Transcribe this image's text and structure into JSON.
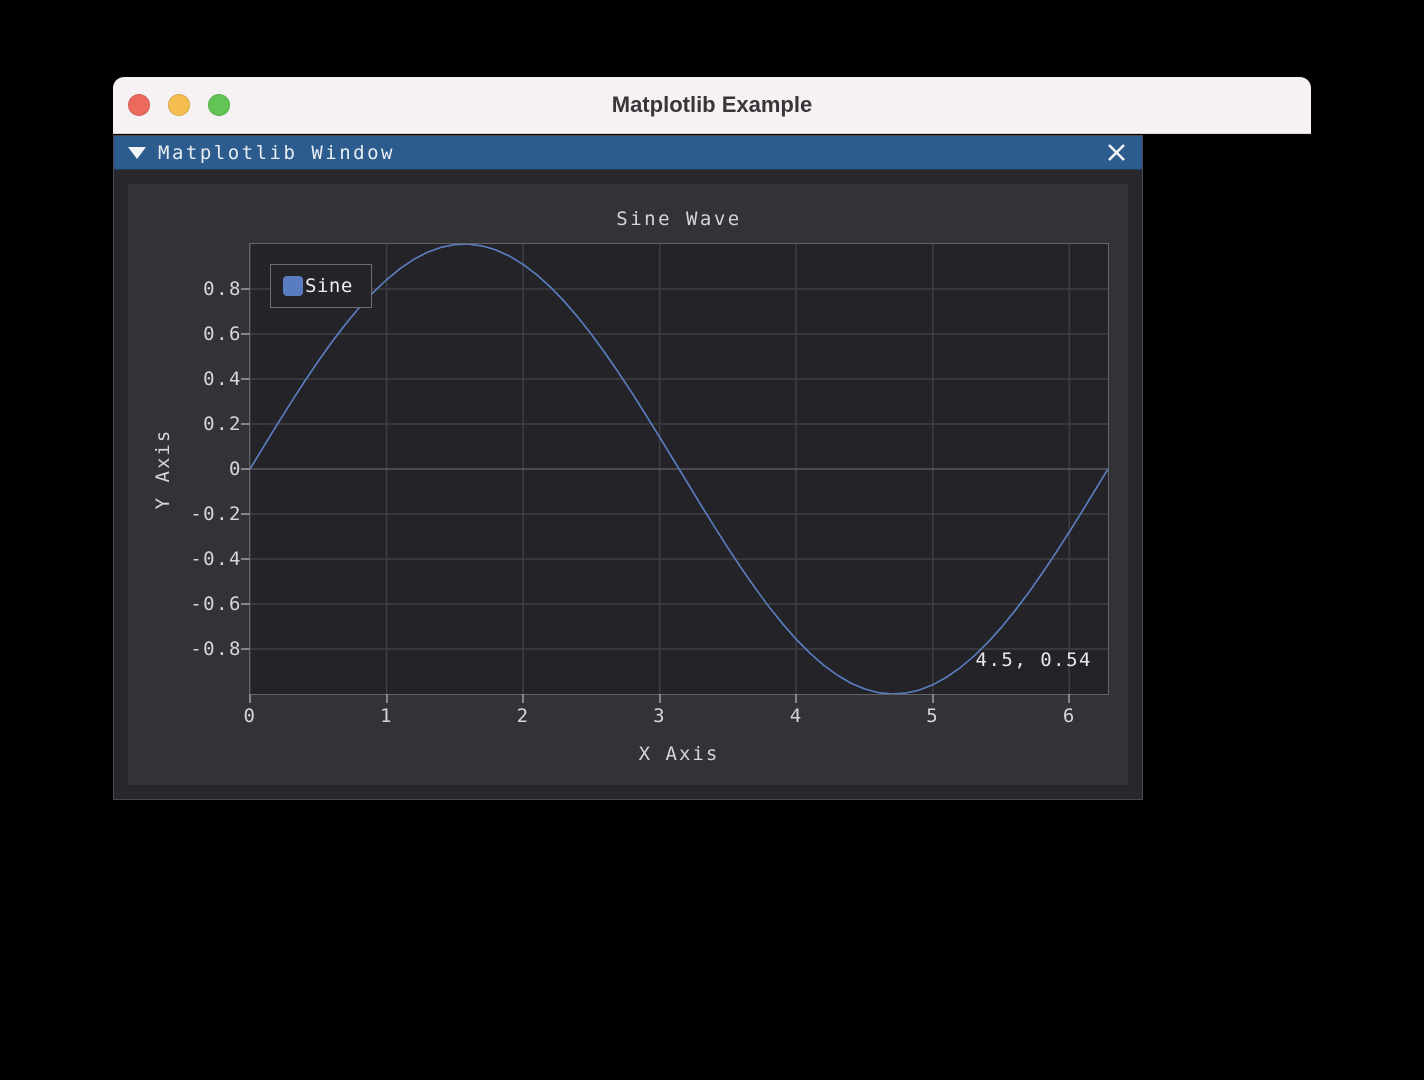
{
  "mac_window": {
    "title": "Matplotlib Example",
    "titlebar_bg": "#f6f1f2",
    "traffic_lights": {
      "close_color": "#ec695e",
      "minimize_color": "#f4bd4e",
      "zoom_color": "#61c454"
    }
  },
  "inner_window": {
    "title": "Matplotlib Window",
    "collapse_icon": "down-triangle",
    "close_icon": "x-cross",
    "titlebar_bg": "#2b5c8d"
  },
  "chart_data": {
    "type": "line",
    "title": "Sine Wave",
    "xlabel": "X Axis",
    "ylabel": "Y Axis",
    "xlim": [
      0,
      6.2832
    ],
    "ylim": [
      -1,
      1
    ],
    "xticks": [
      0,
      1,
      2,
      3,
      4,
      5,
      6
    ],
    "xtick_labels": [
      "0",
      "1",
      "2",
      "3",
      "4",
      "5",
      "6"
    ],
    "yticks": [
      0.8,
      0.6,
      0.4,
      0.2,
      0,
      -0.2,
      -0.4,
      -0.6,
      -0.8
    ],
    "ytick_labels": [
      "0.8",
      "0.6",
      "0.4",
      "0.2",
      "0",
      "-0.2",
      "-0.4",
      "-0.6",
      "-0.8"
    ],
    "grid": true,
    "legend": {
      "position": "upper-left",
      "entries": [
        {
          "label": "Sine",
          "color": "#5a7cc0"
        }
      ]
    },
    "annotation": {
      "text": "4.5, 0.54",
      "position": "bottom-right"
    },
    "series": [
      {
        "name": "Sine",
        "color": "#5b80c4",
        "x": [
          0,
          0.1,
          0.2,
          0.3,
          0.4,
          0.5,
          0.6,
          0.7,
          0.8,
          0.9,
          1,
          1.1,
          1.2,
          1.3,
          1.4,
          1.5,
          1.6,
          1.7,
          1.8,
          1.9,
          2,
          2.1,
          2.2,
          2.3,
          2.4,
          2.5,
          2.6,
          2.7,
          2.8,
          2.9,
          3,
          3.1,
          3.2,
          3.3,
          3.4,
          3.5,
          3.6,
          3.7,
          3.8,
          3.9,
          4,
          4.1,
          4.2,
          4.3,
          4.4,
          4.5,
          4.6,
          4.7,
          4.8,
          4.9,
          5,
          5.1,
          5.2,
          5.3,
          5.4,
          5.5,
          5.6,
          5.7,
          5.8,
          5.9,
          6,
          6.1,
          6.2,
          6.283
        ],
        "y": [
          0,
          0.0998,
          0.1987,
          0.2955,
          0.3894,
          0.4794,
          0.5646,
          0.6442,
          0.7174,
          0.7833,
          0.8415,
          0.8912,
          0.932,
          0.9636,
          0.9854,
          0.9975,
          0.9996,
          0.9917,
          0.9738,
          0.9463,
          0.9093,
          0.8632,
          0.8085,
          0.7457,
          0.6755,
          0.5985,
          0.5155,
          0.4274,
          0.335,
          0.2392,
          0.1411,
          0.0416,
          -0.0584,
          -0.1577,
          -0.2555,
          -0.3508,
          -0.4425,
          -0.5298,
          -0.6119,
          -0.6878,
          -0.7568,
          -0.8183,
          -0.8716,
          -0.9162,
          -0.9516,
          -0.9775,
          -0.9937,
          -0.9999,
          -0.996,
          -0.9825,
          -0.9589,
          -0.9258,
          -0.8835,
          -0.8323,
          -0.7728,
          -0.7055,
          -0.6313,
          -0.5507,
          -0.4646,
          -0.3739,
          -0.2794,
          -0.1822,
          -0.0831,
          0
        ]
      }
    ],
    "colors": {
      "figure_bg": "#323237",
      "axes_bg": "#242428",
      "grid": "#3e3e44",
      "zero_grid": "#57575e",
      "axes_border": "#63636a",
      "text": "#d6d6da"
    }
  }
}
